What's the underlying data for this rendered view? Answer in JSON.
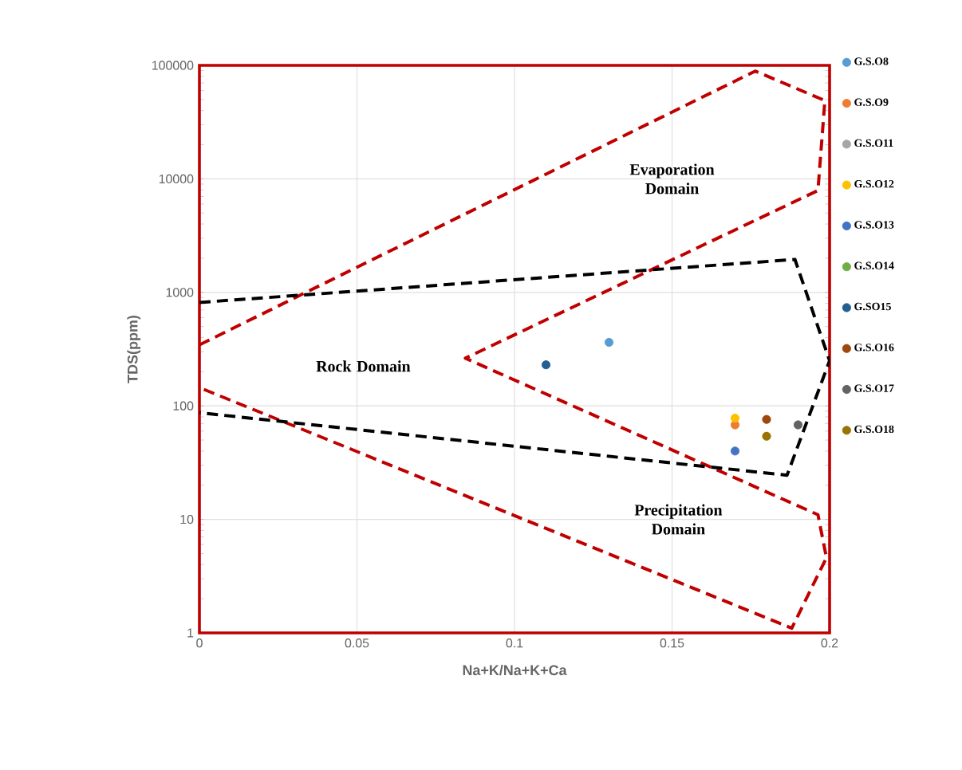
{
  "chart_data": {
    "type": "scatter",
    "xlabel": "Na+K/Na+K+Ca",
    "ylabel": "TDS(ppm)",
    "xlim": [
      0,
      0.2
    ],
    "xticks": [
      0,
      0.05,
      0.1,
      0.15,
      0.2
    ],
    "ylim": [
      1,
      100000
    ],
    "yticks": [
      1,
      10,
      100,
      1000,
      10000,
      100000
    ],
    "log": "y",
    "grid": true,
    "legend": "right",
    "annotations": [
      "Evaporation Domain",
      "Rock Domain",
      "Precipitation Domain"
    ],
    "series": [
      {
        "type": "line",
        "line_style": "dashed",
        "marker": "none",
        "color": "#c00000",
        "x": [
          0,
          0.1764,
          0.1985,
          0.1963,
          0.0844,
          0.1963,
          0.199,
          0.188,
          0
        ],
        "values": [
          345,
          89000,
          49000,
          7900,
          263,
          11,
          4.6,
          1.1,
          145
        ]
      },
      {
        "type": "line",
        "line_style": "dashed",
        "marker": "none",
        "color": "#000000",
        "x": [
          0,
          0.189,
          0.2,
          0.1865,
          0
        ],
        "values": [
          815,
          1950,
          250,
          24.5,
          87
        ]
      },
      {
        "name": "G.S.O8",
        "marker": "circle",
        "color": "#5b9bd5",
        "x": [
          0.13
        ],
        "values": [
          363
        ]
      },
      {
        "name": "G.S.O9",
        "marker": "circle",
        "color": "#ed7d31",
        "x": [
          0.17
        ],
        "values": [
          68
        ]
      },
      {
        "name": "G.S.O11",
        "marker": "circle",
        "color": "#a5a5a5",
        "values": [
          null
        ]
      },
      {
        "name": "G.S.O12",
        "marker": "circle",
        "color": "#ffc000",
        "x": [
          0.17
        ],
        "values": [
          78
        ]
      },
      {
        "name": "G.S.O13",
        "marker": "circle",
        "color": "#4472c4",
        "x": [
          0.17
        ],
        "values": [
          40
        ]
      },
      {
        "name": "G.S.O14",
        "marker": "circle",
        "color": "#70ad47",
        "values": [
          null
        ]
      },
      {
        "name": "G.SO15",
        "marker": "circle",
        "color": "#255e91",
        "x": [
          0.11
        ],
        "values": [
          230
        ]
      },
      {
        "name": "G.S.O16",
        "marker": "circle",
        "color": "#9e480e",
        "x": [
          0.18
        ],
        "values": [
          76
        ]
      },
      {
        "name": "G.S.O17",
        "marker": "circle",
        "color": "#636363",
        "x": [
          0.19
        ],
        "values": [
          68
        ]
      },
      {
        "name": "G.S.O18",
        "marker": "circle",
        "color": "#997300",
        "x": [
          0.18
        ],
        "values": [
          54
        ]
      }
    ]
  }
}
